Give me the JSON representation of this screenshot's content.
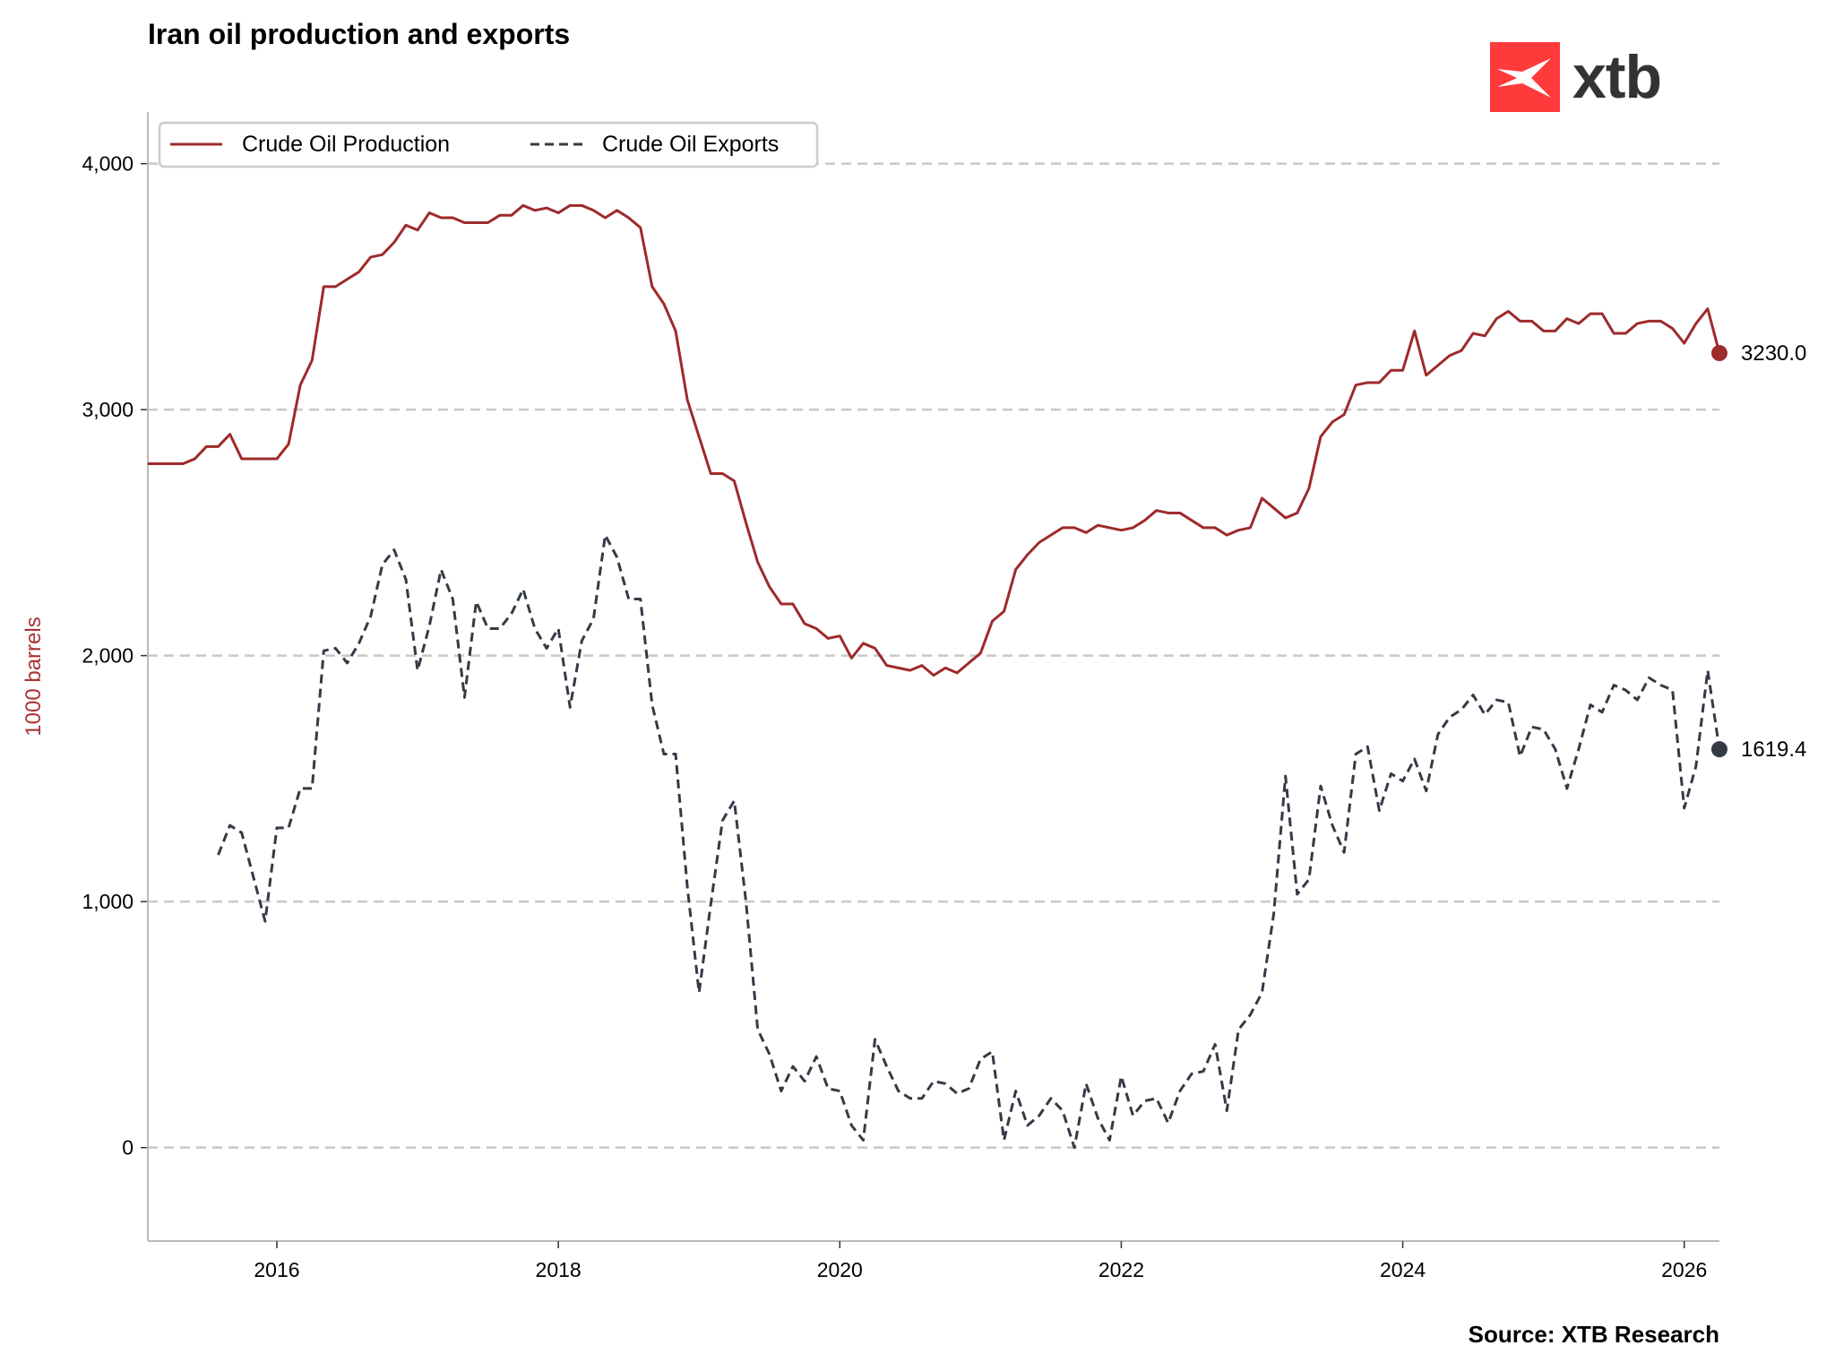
{
  "title": "Iran oil production and exports",
  "source": "Source: XTB Research",
  "logo": {
    "text": "xtb",
    "color": "#ff3a3a"
  },
  "chart_data": {
    "type": "line",
    "title": "Iran oil production and exports",
    "ylabel": "1000 barrels",
    "xlabel": "",
    "ylim": [
      -380,
      4210
    ],
    "xlim": [
      "2015-02",
      "2026-04"
    ],
    "yticks": [
      0,
      1000,
      2000,
      3000,
      4000
    ],
    "ytick_labels": [
      "0",
      "1,000",
      "2,000",
      "3,000",
      "4,000"
    ],
    "xticks": [
      "2016",
      "2018",
      "2020",
      "2022",
      "2024",
      "2026"
    ],
    "grid": "horizontal dashed",
    "legend_placement": "top-left",
    "series": [
      {
        "name": "Crude Oil Production",
        "color": "#9e2a2b",
        "style": "solid",
        "start": "2015-02",
        "frequency": "monthly",
        "last_label": "3230.0",
        "values": [
          2780,
          2780,
          2780,
          2780,
          2800,
          2850,
          2850,
          2900,
          2800,
          2800,
          2800,
          2800,
          2860,
          3100,
          3200,
          3500,
          3500,
          3530,
          3560,
          3620,
          3630,
          3680,
          3750,
          3730,
          3800,
          3780,
          3780,
          3760,
          3760,
          3760,
          3790,
          3790,
          3830,
          3810,
          3820,
          3800,
          3830,
          3830,
          3810,
          3780,
          3810,
          3780,
          3740,
          3500,
          3430,
          3320,
          3040,
          2890,
          2740,
          2740,
          2710,
          2540,
          2380,
          2280,
          2210,
          2210,
          2130,
          2110,
          2070,
          2080,
          1990,
          2050,
          2030,
          1960,
          1950,
          1940,
          1960,
          1920,
          1950,
          1930,
          1970,
          2010,
          2140,
          2180,
          2350,
          2410,
          2460,
          2490,
          2520,
          2520,
          2500,
          2530,
          2520,
          2510,
          2520,
          2550,
          2590,
          2580,
          2580,
          2550,
          2520,
          2520,
          2490,
          2510,
          2520,
          2640,
          2600,
          2560,
          2580,
          2680,
          2890,
          2950,
          2980,
          3100,
          3110,
          3110,
          3160,
          3160,
          3320,
          3140,
          3180,
          3220,
          3240,
          3310,
          3300,
          3370,
          3400,
          3360,
          3360,
          3320,
          3320,
          3370,
          3350,
          3390,
          3390,
          3310,
          3310,
          3350,
          3360,
          3360,
          3330,
          3270,
          3350,
          3410,
          3230.0
        ]
      },
      {
        "name": "Crude Oil Exports",
        "color": "#343a46",
        "style": "dashed",
        "start": "2015-08",
        "frequency": "monthly",
        "last_label": "1619.4",
        "values": [
          1190,
          1310,
          1280,
          1100,
          920,
          1300,
          1300,
          1460,
          1460,
          2020,
          2030,
          1970,
          2050,
          2160,
          2370,
          2430,
          2310,
          1940,
          2120,
          2350,
          2230,
          1830,
          2220,
          2110,
          2110,
          2170,
          2270,
          2110,
          2030,
          2110,
          1790,
          2060,
          2150,
          2490,
          2400,
          2230,
          2230,
          1800,
          1600,
          1600,
          1060,
          630,
          990,
          1330,
          1410,
          1000,
          480,
          380,
          230,
          330,
          270,
          370,
          240,
          230,
          90,
          30,
          440,
          330,
          230,
          200,
          200,
          270,
          260,
          220,
          240,
          360,
          390,
          30,
          230,
          90,
          130,
          200,
          150,
          0,
          260,
          120,
          30,
          290,
          130,
          190,
          200,
          100,
          230,
          300,
          310,
          420,
          150,
          480,
          540,
          630,
          950,
          1510,
          1030,
          1090,
          1470,
          1310,
          1200,
          1600,
          1630,
          1370,
          1520,
          1490,
          1580,
          1450,
          1680,
          1750,
          1780,
          1840,
          1760,
          1820,
          1810,
          1590,
          1710,
          1700,
          1620,
          1460,
          1620,
          1800,
          1770,
          1880,
          1860,
          1820,
          1910,
          1880,
          1860,
          1380,
          1550,
          1940,
          1619.4
        ]
      }
    ]
  }
}
